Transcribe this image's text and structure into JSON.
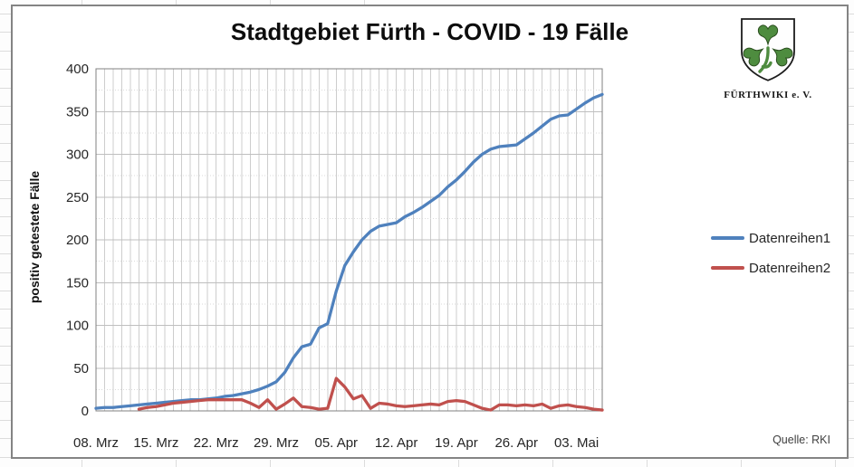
{
  "chart": {
    "title": "Stadtgebiet Fürth - COVID - 19 Fälle",
    "y_axis_title": "positiv getestete Fälle",
    "source": "Quelle: RKI"
  },
  "logo": {
    "caption": "FÜRTHWIKI e. V.",
    "clover_color": "#4e8c3f"
  },
  "chart_data": {
    "type": "line",
    "title": "Stadtgebiet Fürth - COVID - 19 Fälle",
    "xlabel": "",
    "ylabel": "positiv getestete Fälle",
    "ylim": [
      0,
      400
    ],
    "y_major_step": 50,
    "y_minor_step": 25,
    "grid": "both",
    "legend_position": "right",
    "x_tick_labels": [
      "08. Mrz",
      "15. Mrz",
      "22. Mrz",
      "29. Mrz",
      "05. Apr",
      "12. Apr",
      "19. Apr",
      "26. Apr",
      "03. Mai"
    ],
    "x_tick_indices": [
      0,
      7,
      14,
      21,
      28,
      35,
      42,
      49,
      56
    ],
    "dates": [
      "08.03",
      "09.03",
      "10.03",
      "11.03",
      "12.03",
      "13.03",
      "14.03",
      "15.03",
      "16.03",
      "17.03",
      "18.03",
      "19.03",
      "20.03",
      "21.03",
      "22.03",
      "23.03",
      "24.03",
      "25.03",
      "26.03",
      "27.03",
      "28.03",
      "29.03",
      "30.03",
      "31.03",
      "01.04",
      "02.04",
      "03.04",
      "04.04",
      "05.04",
      "06.04",
      "07.04",
      "08.04",
      "09.04",
      "10.04",
      "11.04",
      "12.04",
      "13.04",
      "14.04",
      "15.04",
      "16.04",
      "17.04",
      "18.04",
      "19.04",
      "20.04",
      "21.04",
      "22.04",
      "23.04",
      "24.04",
      "25.04",
      "26.04",
      "27.04",
      "28.04",
      "29.04",
      "30.04",
      "01.05",
      "02.05",
      "03.05",
      "04.05",
      "05.05",
      "06.05"
    ],
    "series": [
      {
        "name": "Datenreihen1",
        "color": "#4F81BD",
        "values": [
          3,
          4,
          4,
          5,
          6,
          7,
          8,
          9,
          10,
          11,
          12,
          13,
          13,
          14,
          15,
          17,
          18,
          20,
          22,
          25,
          29,
          34,
          45,
          62,
          75,
          78,
          97,
          102,
          140,
          170,
          186,
          200,
          210,
          216,
          218,
          220,
          227,
          232,
          238,
          245,
          252,
          262,
          270,
          280,
          291,
          300,
          306,
          309,
          310,
          311,
          318,
          325,
          333,
          341,
          345,
          346,
          353,
          360,
          366,
          370
        ]
      },
      {
        "name": "Datenreihen2",
        "color": "#C0504D",
        "values": [
          null,
          null,
          null,
          null,
          null,
          2,
          4,
          5,
          7,
          9,
          10,
          11,
          12,
          13,
          13,
          13,
          13,
          13,
          9,
          4,
          13,
          2,
          8,
          15,
          5,
          4,
          2,
          3,
          38,
          28,
          14,
          18,
          3,
          9,
          8,
          6,
          5,
          6,
          7,
          8,
          7,
          11,
          12,
          11,
          7,
          3,
          1,
          7,
          7,
          6,
          7,
          6,
          8,
          3,
          6,
          7,
          5,
          4,
          2,
          1
        ]
      }
    ]
  }
}
